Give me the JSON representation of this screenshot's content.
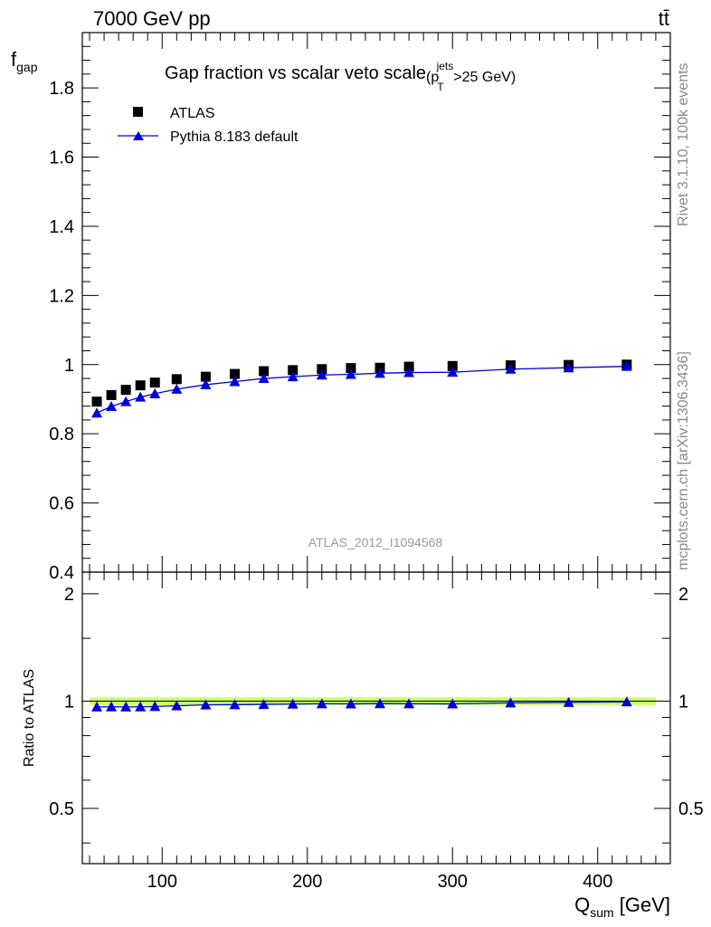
{
  "header": {
    "left": "7000 GeV pp",
    "right": "tt̄"
  },
  "side_labels": {
    "rivet": "Rivet 3.1.10,  100k events",
    "mcplots": "mcplots.cern.ch [arXiv:1306.3436]"
  },
  "colors": {
    "data": "#000000",
    "mc": "#0000dd",
    "band": "#ccff66"
  },
  "chart_data": [
    {
      "type": "scatter",
      "title_main": "Gap fraction vs scalar veto scale",
      "title_sub": "(p",
      "title_sup": "jets",
      "title_subscript": "T",
      "title_tail": ">25 GeV)",
      "ylabel": "f",
      "ylabel_sub": "gap",
      "watermark": "ATLAS_2012_I1094568",
      "xlim": [
        45,
        450
      ],
      "ylim": [
        0.4,
        1.96
      ],
      "yticks": [
        "0.4",
        "0.6",
        "0.8",
        "1",
        "1.2",
        "1.4",
        "1.6",
        "1.8"
      ],
      "legend_position": "top-left",
      "series": [
        {
          "name": "ATLAS",
          "marker": "square",
          "x": [
            55,
            65,
            75,
            85,
            95,
            110,
            130,
            150,
            170,
            190,
            210,
            230,
            250,
            270,
            300,
            340,
            380,
            420
          ],
          "y": [
            0.893,
            0.912,
            0.927,
            0.94,
            0.948,
            0.958,
            0.965,
            0.973,
            0.981,
            0.984,
            0.987,
            0.99,
            0.991,
            0.994,
            0.996,
            0.998,
            0.999,
            1.0
          ]
        },
        {
          "name": "Pythia 8.183 default",
          "marker": "triangle",
          "x": [
            55,
            65,
            75,
            85,
            95,
            110,
            130,
            150,
            170,
            190,
            210,
            230,
            250,
            270,
            300,
            340,
            380,
            420
          ],
          "y": [
            0.86,
            0.879,
            0.893,
            0.906,
            0.916,
            0.929,
            0.942,
            0.951,
            0.96,
            0.965,
            0.97,
            0.972,
            0.975,
            0.977,
            0.978,
            0.987,
            0.991,
            0.995
          ]
        }
      ]
    },
    {
      "type": "scatter",
      "ylabel": "Ratio to ATLAS",
      "xlabel": "Q",
      "xlabel_sub": "sum",
      "xlabel_tail": " [GeV]",
      "xlim": [
        45,
        450
      ],
      "ylim": [
        0.35,
        2.3
      ],
      "yscale": "log",
      "yticks": [
        "0.5",
        "1",
        "2"
      ],
      "xticks": [
        "100",
        "200",
        "300",
        "400"
      ],
      "band": {
        "low": 0.975,
        "high": 1.025
      },
      "series": [
        {
          "name": "Pythia 8.183 default",
          "x": [
            55,
            65,
            75,
            85,
            95,
            110,
            130,
            150,
            170,
            190,
            210,
            230,
            250,
            270,
            300,
            340,
            380,
            420
          ],
          "y": [
            0.963,
            0.964,
            0.963,
            0.964,
            0.966,
            0.97,
            0.976,
            0.977,
            0.979,
            0.981,
            0.983,
            0.982,
            0.984,
            0.983,
            0.982,
            0.989,
            0.992,
            0.995
          ]
        }
      ]
    }
  ]
}
